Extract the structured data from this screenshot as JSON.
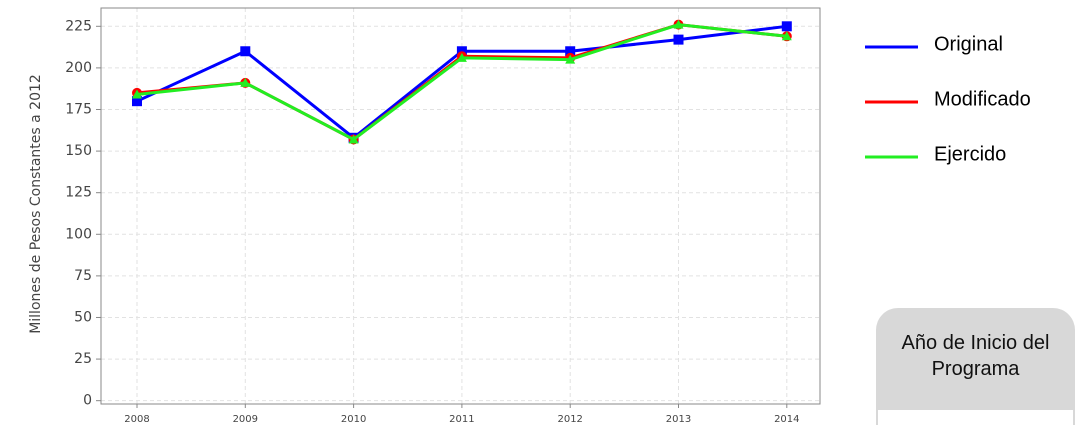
{
  "chart_data": {
    "type": "line",
    "y_label": "Millones de Pesos Constantes a 2012",
    "categories": [
      "2008",
      "2009",
      "2010",
      "2011",
      "2012",
      "2013",
      "2014"
    ],
    "series": [
      {
        "name": "Original",
        "color": "#0000ff",
        "marker": "square",
        "values": [
          180,
          210,
          158,
          210,
          210,
          217,
          225
        ]
      },
      {
        "name": "Modificado",
        "color": "#ff0000",
        "marker": "circle",
        "values": [
          185,
          191,
          157,
          207,
          206,
          226,
          219
        ]
      },
      {
        "name": "Ejercido",
        "color": "#22ee22",
        "marker": "triangle",
        "values": [
          184,
          191,
          157,
          206,
          205,
          226,
          219
        ]
      }
    ],
    "ylim": [
      -2,
      236
    ],
    "yticks": [
      0,
      25,
      50,
      75,
      100,
      125,
      150,
      175,
      200,
      225
    ],
    "grid": true
  },
  "side_box": {
    "title": "Año de Inicio del Programa"
  }
}
